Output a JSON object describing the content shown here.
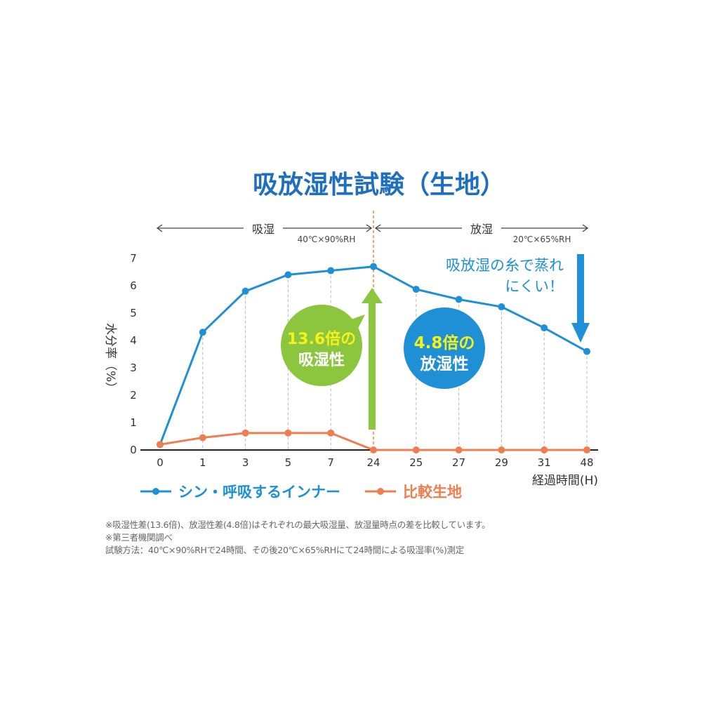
{
  "chart_data": {
    "type": "line",
    "title": "吸放湿性試験（生地）",
    "ylabel": "水分率（%）",
    "xlabel": "経過時間(H)",
    "categories": [
      "0",
      "1",
      "3",
      "5",
      "7",
      "24",
      "25",
      "27",
      "29",
      "31",
      "48"
    ],
    "ylim": [
      0,
      7
    ],
    "yticks": [
      "0",
      "1",
      "2",
      "3",
      "4",
      "5",
      "6",
      "7"
    ],
    "grid": "vertical dashed",
    "legend_position": "bottom",
    "series": [
      {
        "name": "シン・呼吸するインナー",
        "color": "#1f8fd6",
        "values": [
          0.2,
          4.3,
          5.8,
          6.4,
          6.55,
          6.7,
          5.87,
          5.5,
          5.23,
          4.46,
          3.6
        ]
      },
      {
        "name": "比較生地",
        "color": "#ef7d4f",
        "values": [
          0.2,
          0.45,
          0.62,
          0.62,
          0.62,
          0.0,
          0.0,
          0.0,
          0.0,
          0.0,
          0.0
        ]
      }
    ],
    "phases": [
      {
        "label": "吸湿",
        "condition": "40℃×90%RH"
      },
      {
        "label": "放湿",
        "condition": "20℃×65%RH"
      }
    ],
    "annotations": {
      "absorb_bubble": [
        "13.6倍の",
        "吸湿性"
      ],
      "release_bubble": [
        "4.8倍の",
        "放湿性"
      ],
      "callout": [
        "吸放湿の糸で蒸れ",
        "にくい！"
      ]
    },
    "colors": {
      "title": "#1f6fc0",
      "blue": "#1f8fd6",
      "orange": "#ef7d4f",
      "green": "#8cc63f",
      "yellow": "#f5f21a"
    }
  },
  "notes": [
    "※吸湿性差(13.6倍)、放湿性差(4.8倍)はそれぞれの最大吸湿量、放湿量時点の差を比較しています。",
    "※第三者機関調べ",
    "試験方法：40℃×90%RHで24時間、その後20℃×65%RHにて24時間による吸湿率(%)測定"
  ]
}
